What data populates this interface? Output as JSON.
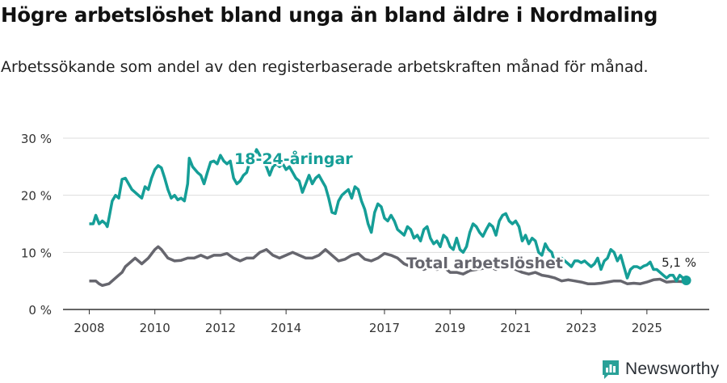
{
  "title": "Högre arbetslöshet bland unga än bland äldre i Nordmaling",
  "subtitle": "Arbetssökande som andel av den registerbaserade arbetskraften månad för månad.",
  "brand": "Newsworthy",
  "colors": {
    "youth": "#159e97",
    "total": "#66666e",
    "grid": "#dddddd",
    "axis": "#333333",
    "text": "#333333",
    "logo": "#2aa198"
  },
  "chart_data": {
    "type": "line",
    "title": "Högre arbetslöshet bland unga än bland äldre i Nordmaling",
    "xlabel": "",
    "ylabel": "",
    "xlim": [
      2007.2,
      2026.9
    ],
    "ylim": [
      0,
      30
    ],
    "yticks": [
      0,
      10,
      20,
      30
    ],
    "ytick_labels": [
      "0 %",
      "10 %",
      "20 %",
      "30 %"
    ],
    "xticks": [
      2008,
      2010,
      2012,
      2014,
      2017,
      2019,
      2021,
      2023,
      2025
    ],
    "xtick_labels": [
      "2008",
      "2010",
      "2012",
      "2014",
      "2017",
      "2019",
      "2021",
      "2023",
      "2025"
    ],
    "end_label": "5,1 %",
    "series": [
      {
        "name": "18–24-åringar",
        "label": "18-24-åringar",
        "points": [
          [
            2008.0,
            15.0
          ],
          [
            2008.12,
            15.0
          ],
          [
            2008.2,
            16.5
          ],
          [
            2008.3,
            15.0
          ],
          [
            2008.4,
            15.5
          ],
          [
            2008.5,
            15.0
          ],
          [
            2008.55,
            14.5
          ],
          [
            2008.6,
            16.0
          ],
          [
            2008.7,
            19.0
          ],
          [
            2008.8,
            20.0
          ],
          [
            2008.9,
            19.5
          ],
          [
            2009.0,
            22.8
          ],
          [
            2009.1,
            23.0
          ],
          [
            2009.2,
            22.0
          ],
          [
            2009.3,
            21.0
          ],
          [
            2009.4,
            20.5
          ],
          [
            2009.5,
            20.0
          ],
          [
            2009.6,
            19.5
          ],
          [
            2009.7,
            21.5
          ],
          [
            2009.8,
            21.0
          ],
          [
            2009.9,
            23.0
          ],
          [
            2010.0,
            24.5
          ],
          [
            2010.1,
            25.2
          ],
          [
            2010.2,
            24.8
          ],
          [
            2010.3,
            23.0
          ],
          [
            2010.4,
            21.0
          ],
          [
            2010.5,
            19.5
          ],
          [
            2010.6,
            20.0
          ],
          [
            2010.7,
            19.2
          ],
          [
            2010.8,
            19.5
          ],
          [
            2010.9,
            19.0
          ],
          [
            2011.0,
            22.0
          ],
          [
            2011.05,
            26.5
          ],
          [
            2011.15,
            25.0
          ],
          [
            2011.3,
            24.0
          ],
          [
            2011.4,
            23.5
          ],
          [
            2011.5,
            22.0
          ],
          [
            2011.6,
            24.0
          ],
          [
            2011.7,
            25.8
          ],
          [
            2011.8,
            26.0
          ],
          [
            2011.9,
            25.5
          ],
          [
            2012.0,
            27.0
          ],
          [
            2012.1,
            26.0
          ],
          [
            2012.2,
            25.5
          ],
          [
            2012.3,
            26.0
          ],
          [
            2012.4,
            23.0
          ],
          [
            2012.5,
            22.0
          ],
          [
            2012.6,
            22.5
          ],
          [
            2012.7,
            23.5
          ],
          [
            2012.8,
            24.0
          ],
          [
            2012.9,
            26.0
          ],
          [
            2013.0,
            26.5
          ],
          [
            2013.1,
            28.0
          ],
          [
            2013.2,
            27.0
          ],
          [
            2013.3,
            26.0
          ],
          [
            2013.4,
            25.0
          ],
          [
            2013.5,
            23.5
          ],
          [
            2013.6,
            25.0
          ],
          [
            2013.7,
            25.5
          ],
          [
            2013.8,
            25.0
          ],
          [
            2013.9,
            25.5
          ],
          [
            2014.0,
            24.5
          ],
          [
            2014.1,
            25.0
          ],
          [
            2014.2,
            24.0
          ],
          [
            2014.3,
            23.0
          ],
          [
            2014.4,
            22.5
          ],
          [
            2014.5,
            20.5
          ],
          [
            2014.6,
            22.0
          ],
          [
            2014.7,
            23.5
          ],
          [
            2014.8,
            22.0
          ],
          [
            2014.9,
            23.0
          ],
          [
            2015.0,
            23.5
          ],
          [
            2015.1,
            22.5
          ],
          [
            2015.2,
            21.5
          ],
          [
            2015.3,
            19.5
          ],
          [
            2015.4,
            17.0
          ],
          [
            2015.5,
            16.8
          ],
          [
            2015.6,
            19.0
          ],
          [
            2015.7,
            20.0
          ],
          [
            2015.8,
            20.5
          ],
          [
            2015.9,
            21.0
          ],
          [
            2016.0,
            19.5
          ],
          [
            2016.1,
            21.5
          ],
          [
            2016.2,
            21.0
          ],
          [
            2016.3,
            19.0
          ],
          [
            2016.4,
            17.5
          ],
          [
            2016.5,
            15.0
          ],
          [
            2016.6,
            13.5
          ],
          [
            2016.7,
            17.0
          ],
          [
            2016.8,
            18.5
          ],
          [
            2016.9,
            18.0
          ],
          [
            2017.0,
            16.0
          ],
          [
            2017.1,
            15.5
          ],
          [
            2017.2,
            16.5
          ],
          [
            2017.3,
            15.5
          ],
          [
            2017.4,
            14.0
          ],
          [
            2017.5,
            13.5
          ],
          [
            2017.6,
            13.0
          ],
          [
            2017.7,
            14.5
          ],
          [
            2017.8,
            14.0
          ],
          [
            2017.9,
            12.5
          ],
          [
            2018.0,
            13.0
          ],
          [
            2018.1,
            12.0
          ],
          [
            2018.2,
            14.0
          ],
          [
            2018.3,
            14.5
          ],
          [
            2018.4,
            12.5
          ],
          [
            2018.5,
            11.5
          ],
          [
            2018.6,
            12.0
          ],
          [
            2018.7,
            11.0
          ],
          [
            2018.8,
            13.0
          ],
          [
            2018.9,
            12.5
          ],
          [
            2019.0,
            11.0
          ],
          [
            2019.1,
            10.5
          ],
          [
            2019.2,
            12.5
          ],
          [
            2019.3,
            10.5
          ],
          [
            2019.4,
            10.0
          ],
          [
            2019.5,
            11.0
          ],
          [
            2019.6,
            13.5
          ],
          [
            2019.7,
            15.0
          ],
          [
            2019.8,
            14.5
          ],
          [
            2019.9,
            13.5
          ],
          [
            2020.0,
            12.8
          ],
          [
            2020.1,
            14.0
          ],
          [
            2020.2,
            15.0
          ],
          [
            2020.3,
            14.5
          ],
          [
            2020.4,
            13.0
          ],
          [
            2020.5,
            15.5
          ],
          [
            2020.6,
            16.5
          ],
          [
            2020.7,
            16.8
          ],
          [
            2020.8,
            15.5
          ],
          [
            2020.9,
            15.0
          ],
          [
            2021.0,
            15.5
          ],
          [
            2021.1,
            14.5
          ],
          [
            2021.2,
            12.0
          ],
          [
            2021.3,
            13.0
          ],
          [
            2021.4,
            11.5
          ],
          [
            2021.5,
            12.5
          ],
          [
            2021.6,
            12.0
          ],
          [
            2021.7,
            10.0
          ],
          [
            2021.8,
            9.5
          ],
          [
            2021.9,
            11.5
          ],
          [
            2022.0,
            10.5
          ],
          [
            2022.1,
            10.0
          ],
          [
            2022.2,
            8.0
          ],
          [
            2022.3,
            8.5
          ],
          [
            2022.4,
            9.0
          ],
          [
            2022.5,
            8.5
          ],
          [
            2022.6,
            8.0
          ],
          [
            2022.7,
            7.5
          ],
          [
            2022.8,
            8.5
          ],
          [
            2022.9,
            8.5
          ],
          [
            2023.0,
            8.2
          ],
          [
            2023.1,
            8.5
          ],
          [
            2023.2,
            8.0
          ],
          [
            2023.3,
            7.5
          ],
          [
            2023.4,
            8.0
          ],
          [
            2023.5,
            9.0
          ],
          [
            2023.6,
            7.0
          ],
          [
            2023.7,
            8.5
          ],
          [
            2023.8,
            9.0
          ],
          [
            2023.9,
            10.5
          ],
          [
            2024.0,
            10.0
          ],
          [
            2024.1,
            8.5
          ],
          [
            2024.2,
            9.5
          ],
          [
            2024.3,
            7.5
          ],
          [
            2024.4,
            5.5
          ],
          [
            2024.5,
            7.0
          ],
          [
            2024.6,
            7.5
          ],
          [
            2024.7,
            7.5
          ],
          [
            2024.8,
            7.2
          ],
          [
            2024.9,
            7.6
          ],
          [
            2025.0,
            7.8
          ],
          [
            2025.1,
            8.3
          ],
          [
            2025.2,
            7.0
          ],
          [
            2025.3,
            7.0
          ],
          [
            2025.4,
            6.5
          ],
          [
            2025.5,
            6.0
          ],
          [
            2025.6,
            5.5
          ],
          [
            2025.7,
            6.0
          ],
          [
            2025.8,
            6.0
          ],
          [
            2025.9,
            5.0
          ],
          [
            2026.0,
            6.0
          ],
          [
            2026.1,
            5.5
          ],
          [
            2026.2,
            5.1
          ]
        ]
      },
      {
        "name": "Total arbetslöshet",
        "label": "Total arbetslöshet",
        "points": [
          [
            2008.0,
            5.0
          ],
          [
            2008.2,
            5.0
          ],
          [
            2008.3,
            4.5
          ],
          [
            2008.4,
            4.2
          ],
          [
            2008.6,
            4.5
          ],
          [
            2008.8,
            5.5
          ],
          [
            2008.9,
            6.0
          ],
          [
            2009.0,
            6.5
          ],
          [
            2009.1,
            7.5
          ],
          [
            2009.3,
            8.5
          ],
          [
            2009.4,
            9.0
          ],
          [
            2009.6,
            8.0
          ],
          [
            2009.8,
            9.0
          ],
          [
            2010.0,
            10.5
          ],
          [
            2010.1,
            11.0
          ],
          [
            2010.2,
            10.5
          ],
          [
            2010.4,
            9.0
          ],
          [
            2010.6,
            8.5
          ],
          [
            2010.8,
            8.6
          ],
          [
            2011.0,
            9.0
          ],
          [
            2011.2,
            9.0
          ],
          [
            2011.4,
            9.5
          ],
          [
            2011.6,
            9.0
          ],
          [
            2011.8,
            9.5
          ],
          [
            2012.0,
            9.5
          ],
          [
            2012.2,
            9.8
          ],
          [
            2012.4,
            9.0
          ],
          [
            2012.6,
            8.5
          ],
          [
            2012.8,
            9.0
          ],
          [
            2013.0,
            9.0
          ],
          [
            2013.2,
            10.0
          ],
          [
            2013.4,
            10.5
          ],
          [
            2013.6,
            9.5
          ],
          [
            2013.8,
            9.0
          ],
          [
            2014.0,
            9.5
          ],
          [
            2014.2,
            10.0
          ],
          [
            2014.4,
            9.5
          ],
          [
            2014.6,
            9.0
          ],
          [
            2014.8,
            9.0
          ],
          [
            2015.0,
            9.5
          ],
          [
            2015.2,
            10.5
          ],
          [
            2015.4,
            9.5
          ],
          [
            2015.6,
            8.5
          ],
          [
            2015.8,
            8.8
          ],
          [
            2016.0,
            9.5
          ],
          [
            2016.2,
            9.8
          ],
          [
            2016.4,
            8.8
          ],
          [
            2016.6,
            8.5
          ],
          [
            2016.8,
            9.0
          ],
          [
            2017.0,
            9.8
          ],
          [
            2017.2,
            9.5
          ],
          [
            2017.4,
            9.0
          ],
          [
            2017.6,
            8.0
          ],
          [
            2017.8,
            7.5
          ],
          [
            2018.0,
            7.5
          ],
          [
            2018.2,
            7.0
          ],
          [
            2018.4,
            7.5
          ],
          [
            2018.6,
            7.0
          ],
          [
            2018.8,
            7.5
          ],
          [
            2019.0,
            6.5
          ],
          [
            2019.2,
            6.5
          ],
          [
            2019.4,
            6.2
          ],
          [
            2019.6,
            6.8
          ],
          [
            2019.8,
            7.0
          ],
          [
            2020.0,
            7.2
          ],
          [
            2020.2,
            7.5
          ],
          [
            2020.4,
            7.0
          ],
          [
            2020.6,
            7.8
          ],
          [
            2020.8,
            7.5
          ],
          [
            2021.0,
            7.0
          ],
          [
            2021.2,
            6.5
          ],
          [
            2021.4,
            6.2
          ],
          [
            2021.6,
            6.5
          ],
          [
            2021.8,
            6.0
          ],
          [
            2022.0,
            5.8
          ],
          [
            2022.2,
            5.5
          ],
          [
            2022.4,
            5.0
          ],
          [
            2022.6,
            5.2
          ],
          [
            2022.8,
            5.0
          ],
          [
            2023.0,
            4.8
          ],
          [
            2023.2,
            4.5
          ],
          [
            2023.4,
            4.5
          ],
          [
            2023.6,
            4.6
          ],
          [
            2023.8,
            4.8
          ],
          [
            2024.0,
            5.0
          ],
          [
            2024.2,
            5.0
          ],
          [
            2024.4,
            4.5
          ],
          [
            2024.6,
            4.6
          ],
          [
            2024.8,
            4.5
          ],
          [
            2025.0,
            4.8
          ],
          [
            2025.2,
            5.2
          ],
          [
            2025.4,
            5.3
          ],
          [
            2025.6,
            4.8
          ],
          [
            2025.8,
            4.9
          ],
          [
            2026.0,
            4.9
          ],
          [
            2026.2,
            4.8
          ]
        ]
      }
    ]
  }
}
